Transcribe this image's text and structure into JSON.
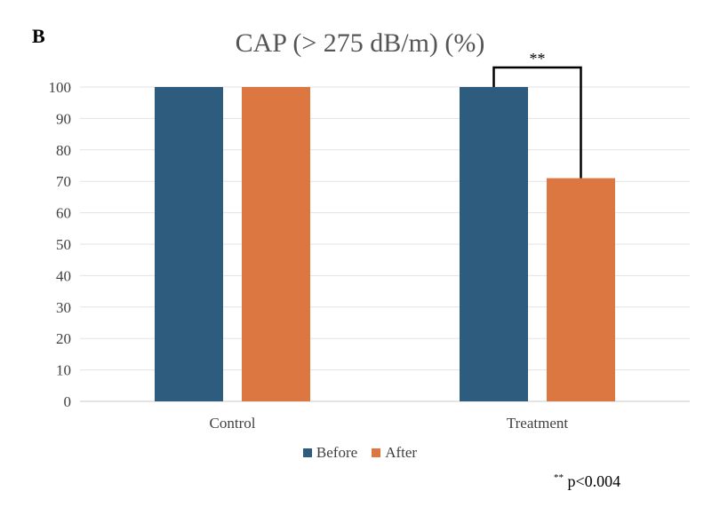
{
  "panel_label": "B",
  "footnote": {
    "marker": "**",
    "text": "p<0.004"
  },
  "chart_data": {
    "type": "bar",
    "title": "CAP (> 275 dB/m) (%)",
    "xlabel": "",
    "ylabel": "",
    "categories": [
      "Control",
      "Treatment"
    ],
    "series": [
      {
        "name": "Before",
        "values": [
          100,
          100
        ],
        "color": "#2e5c7f"
      },
      {
        "name": "After",
        "values": [
          100,
          71
        ],
        "color": "#dc7742"
      }
    ],
    "ylim": [
      0,
      100
    ],
    "yticks": [
      0,
      10,
      20,
      30,
      40,
      50,
      60,
      70,
      80,
      90,
      100
    ],
    "grid": true,
    "legend_position": "bottom",
    "annotations": [
      {
        "text": "**",
        "category": "Treatment",
        "between": [
          "Before",
          "After"
        ]
      }
    ]
  }
}
